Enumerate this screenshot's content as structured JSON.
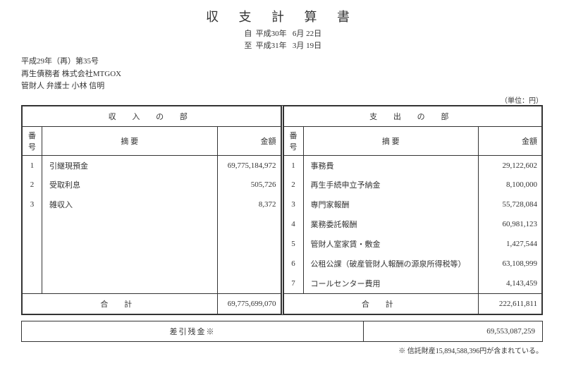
{
  "title": "収 支 計 算 書",
  "period": {
    "from_label": "自",
    "from_era": "平成30年",
    "from_date": "6月 22日",
    "to_label": "至",
    "to_era": "平成31年",
    "to_date": "3月 19日"
  },
  "header": {
    "case_no": "平成29年（再）第35号",
    "debtor": "再生債務者 株式会社MTGOX",
    "trustee": "管財人 弁護士 小林 信明"
  },
  "unit": "（単位：円）",
  "income": {
    "section": "収 入 の 部",
    "cols": {
      "num": "番号",
      "desc": "摘 要",
      "amt": "金額"
    },
    "rows": [
      {
        "n": "1",
        "d": "引継現預金",
        "a": "69,775,184,972"
      },
      {
        "n": "2",
        "d": "受取利息",
        "a": "505,726"
      },
      {
        "n": "3",
        "d": "雑収入",
        "a": "8,372"
      },
      {
        "n": "",
        "d": "",
        "a": ""
      },
      {
        "n": "",
        "d": "",
        "a": ""
      },
      {
        "n": "",
        "d": "",
        "a": ""
      },
      {
        "n": "",
        "d": "",
        "a": ""
      }
    ],
    "total_label": "合 計",
    "total": "69,775,699,070"
  },
  "expense": {
    "section": "支 出 の 部",
    "cols": {
      "num": "番号",
      "desc": "摘 要",
      "amt": "金額"
    },
    "rows": [
      {
        "n": "1",
        "d": "事務費",
        "a": "29,122,602"
      },
      {
        "n": "2",
        "d": "再生手続申立予納金",
        "a": "8,100,000"
      },
      {
        "n": "3",
        "d": "専門家報酬",
        "a": "55,728,084"
      },
      {
        "n": "4",
        "d": "業務委託報酬",
        "a": "60,981,123"
      },
      {
        "n": "5",
        "d": "管財人室家賃・敷金",
        "a": "1,427,544"
      },
      {
        "n": "6",
        "d": "公租公課（破産管財人報酬の源泉所得税等）",
        "a": "63,108,999"
      },
      {
        "n": "7",
        "d": "コールセンター費用",
        "a": "4,143,459"
      }
    ],
    "total_label": "合 計",
    "total": "222,611,811"
  },
  "balance": {
    "label": "差引残金※",
    "amount": "69,553,087,259"
  },
  "footnote": "※ 信託財産15,894,588,396円が含まれている。"
}
